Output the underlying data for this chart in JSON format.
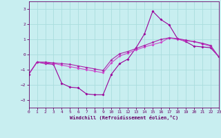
{
  "xlabel": "Windchill (Refroidissement éolien,°C)",
  "x_range": [
    0,
    23
  ],
  "y_range": [
    -3.5,
    3.5
  ],
  "yticks": [
    -3,
    -2,
    -1,
    0,
    1,
    2,
    3
  ],
  "xticks": [
    0,
    1,
    2,
    3,
    4,
    5,
    6,
    7,
    8,
    9,
    10,
    11,
    12,
    13,
    14,
    15,
    16,
    17,
    18,
    19,
    20,
    21,
    22,
    23
  ],
  "bg_color": "#c8eef0",
  "line_color1": "#990099",
  "line_color2": "#cc44cc",
  "line_color3": "#aa22aa",
  "grid_color": "#aadddd",
  "curve1_x": [
    0,
    1,
    2,
    3,
    4,
    5,
    6,
    7,
    8,
    9,
    10,
    11,
    12,
    13,
    14,
    15,
    16,
    17,
    18,
    19,
    20,
    21,
    22,
    23
  ],
  "curve1_y": [
    -1.3,
    -0.5,
    -0.6,
    -0.65,
    -1.9,
    -2.15,
    -2.2,
    -2.6,
    -2.65,
    -2.65,
    -1.3,
    -0.6,
    -0.3,
    0.45,
    1.35,
    2.85,
    2.3,
    1.95,
    1.05,
    0.85,
    0.55,
    0.5,
    0.45,
    -0.15
  ],
  "curve2_x": [
    0,
    1,
    2,
    3,
    4,
    5,
    6,
    7,
    8,
    9,
    10,
    11,
    12,
    13,
    14,
    15,
    16,
    17,
    18,
    19,
    20,
    21,
    22,
    23
  ],
  "curve2_y": [
    -1.3,
    -0.5,
    -0.55,
    -0.6,
    -0.7,
    -0.8,
    -0.9,
    -1.0,
    -1.1,
    -1.2,
    -0.55,
    -0.1,
    0.1,
    0.3,
    0.5,
    0.65,
    0.8,
    1.1,
    1.0,
    0.9,
    0.85,
    0.7,
    0.55,
    -0.15
  ],
  "curve3_x": [
    0,
    1,
    2,
    3,
    4,
    5,
    6,
    7,
    8,
    9,
    10,
    11,
    12,
    13,
    14,
    15,
    16,
    17,
    18,
    19,
    20,
    21,
    22,
    23
  ],
  "curve3_y": [
    -1.3,
    -0.5,
    -0.5,
    -0.55,
    -0.6,
    -0.65,
    -0.75,
    -0.85,
    -0.95,
    -1.05,
    -0.35,
    0.05,
    0.2,
    0.4,
    0.6,
    0.8,
    1.0,
    1.1,
    1.05,
    0.95,
    0.85,
    0.75,
    0.6,
    -0.15
  ]
}
